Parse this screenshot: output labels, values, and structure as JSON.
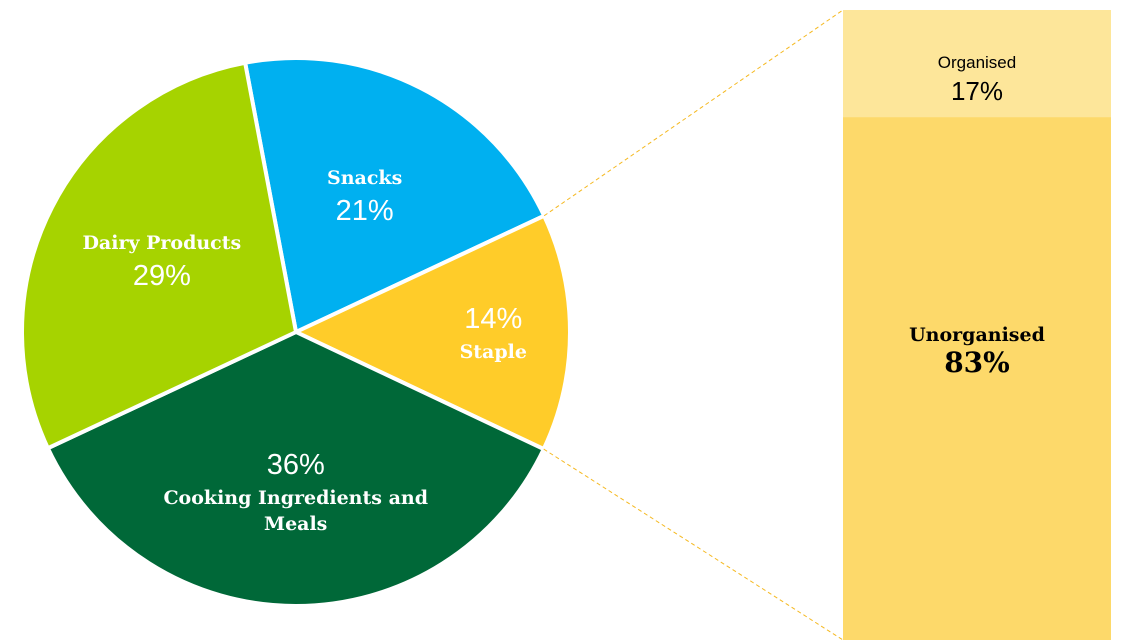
{
  "chart_data": {
    "type": "pie",
    "categories": [
      "Snacks",
      "Staple",
      "Cooking Ingredients and Meals",
      "Dairy Products"
    ],
    "values": [
      21,
      14,
      36,
      29
    ],
    "value_labels": [
      "21%",
      "14%",
      "36%",
      "29%"
    ],
    "colors": [
      "#00b0f0",
      "#ffcc29",
      "#006838",
      "#a6d300"
    ],
    "breakdown": {
      "categories": [
        "Organised",
        "Unorganised"
      ],
      "values": [
        17,
        83
      ],
      "value_labels": [
        "17%",
        "83%"
      ],
      "colors": [
        "#fde69a",
        "#fdd96a"
      ]
    }
  }
}
